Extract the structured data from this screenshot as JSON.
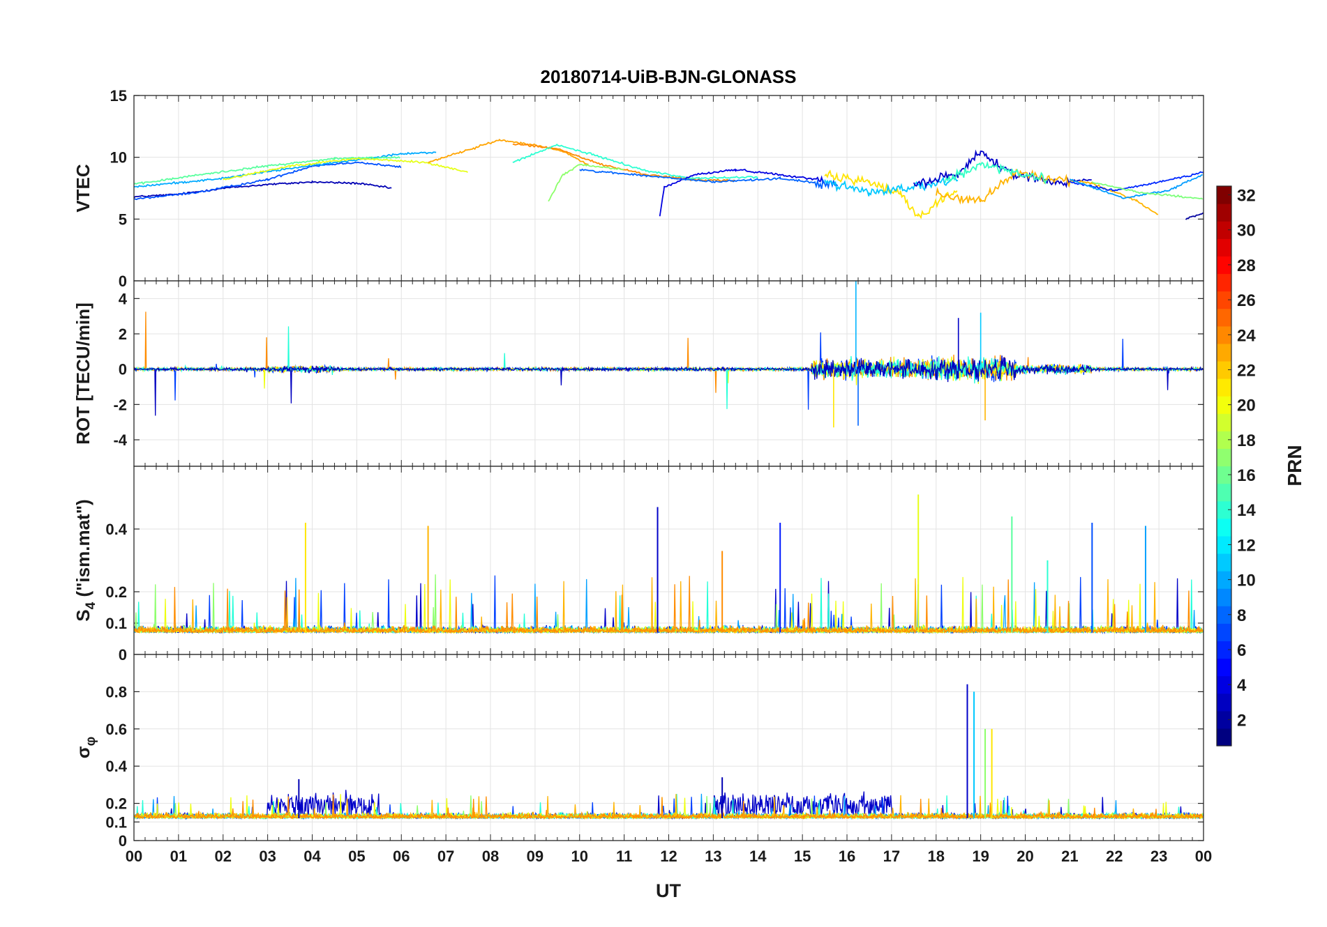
{
  "chart_data": {
    "type": "line",
    "title": "20180714-UiB-BJN-GLONASS",
    "xlabel": "UT",
    "x_ticks": [
      "00",
      "01",
      "02",
      "03",
      "04",
      "05",
      "06",
      "07",
      "08",
      "09",
      "10",
      "11",
      "12",
      "13",
      "14",
      "15",
      "16",
      "17",
      "18",
      "19",
      "20",
      "21",
      "22",
      "23",
      "00"
    ],
    "xlim": [
      0,
      24
    ],
    "grid": true,
    "panels": [
      {
        "id": "vtec",
        "ylabel": "VTEC",
        "ylim": [
          0,
          15
        ],
        "yticks": [
          "0",
          "5",
          "10",
          "15"
        ],
        "series": [
          {
            "color": "#0000b4",
            "x": [
              0,
              1,
              2,
              3,
              4,
              5,
              5.8
            ],
            "y": [
              6.8,
              7.0,
              7.5,
              7.8,
              8.0,
              7.9,
              7.5
            ]
          },
          {
            "color": "#0050ff",
            "x": [
              0,
              1.5,
              3,
              4,
              5,
              6
            ],
            "y": [
              6.6,
              7.2,
              8.2,
              9.3,
              9.6,
              9.2
            ]
          },
          {
            "color": "#00aaff",
            "x": [
              0,
              2,
              3.5,
              5,
              6,
              6.8
            ],
            "y": [
              7.6,
              8.3,
              9.1,
              9.8,
              10.3,
              10.4
            ]
          },
          {
            "color": "#58ff9e",
            "x": [
              0,
              1.5,
              3,
              4.5,
              6
            ],
            "y": [
              7.8,
              8.6,
              9.3,
              9.9,
              10.0
            ]
          },
          {
            "color": "#e6ff18",
            "x": [
              2,
              3.5,
              5,
              6.5,
              7.5
            ],
            "y": [
              8.2,
              9.3,
              9.9,
              9.6,
              8.8
            ]
          },
          {
            "color": "#ffa400",
            "x": [
              6.6,
              7.5,
              8.2,
              9,
              9.6,
              10.2
            ],
            "y": [
              9.6,
              10.6,
              11.4,
              11.0,
              10.5,
              9.4
            ]
          },
          {
            "color": "#ff8a00",
            "x": [
              8.5,
              9.5,
              10.5,
              11.5,
              12.5,
              13.5
            ],
            "y": [
              11.1,
              10.7,
              9.4,
              8.6,
              8.2,
              8.1
            ]
          },
          {
            "color": "#2cffd2",
            "x": [
              8.5,
              9.5,
              10.5,
              11.5,
              12.5,
              14
            ],
            "y": [
              9.6,
              11.0,
              10.0,
              8.9,
              8.3,
              8.4
            ]
          },
          {
            "color": "#8cff6a",
            "x": [
              9.3,
              9.6,
              10,
              11
            ],
            "y": [
              6.4,
              8.5,
              9.4,
              9.0
            ]
          },
          {
            "color": "#0000e0",
            "x": [
              11.8,
              11.9,
              12.6,
              13.5,
              14.5,
              15.5
            ],
            "y": [
              5.2,
              7.6,
              8.6,
              9.0,
              8.6,
              8.1
            ]
          },
          {
            "color": "#0064ff",
            "x": [
              10,
              11.5,
              13,
              14.5,
              15.8
            ],
            "y": [
              9.0,
              8.5,
              8.0,
              8.3,
              7.7
            ]
          },
          {
            "color": "#ffe400",
            "x": [
              15.5,
              16.5,
              17.2,
              17.6,
              18.5
            ],
            "y": [
              8.5,
              8.0,
              7.0,
              5.2,
              7.5
            ]
          },
          {
            "color": "#00c8ff",
            "x": [
              15.5,
              16.5,
              17.5,
              18.5
            ],
            "y": [
              8.0,
              7.2,
              7.6,
              8.1
            ]
          },
          {
            "color": "#0000c8",
            "x": [
              17.5,
              18.5,
              19,
              19.5,
              20.5,
              21.5
            ],
            "y": [
              7.8,
              8.7,
              10.5,
              9.0,
              8.0,
              8.2
            ]
          },
          {
            "color": "#ffb400",
            "x": [
              18,
              19,
              19.8,
              20.5,
              21.5,
              22.5,
              23.0
            ],
            "y": [
              7.0,
              6.5,
              8.8,
              8.3,
              7.9,
              6.5,
              5.3
            ]
          },
          {
            "color": "#32ffc5",
            "x": [
              18.2,
              19,
              19.7,
              20.5
            ],
            "y": [
              8.0,
              9.5,
              8.7,
              8.2
            ]
          },
          {
            "color": "#0028ff",
            "x": [
              21,
              22,
              23,
              24
            ],
            "y": [
              8.0,
              7.3,
              8.0,
              8.8
            ]
          },
          {
            "color": "#009cff",
            "x": [
              21,
              22.2,
              23.2,
              24
            ],
            "y": [
              8.2,
              6.7,
              7.3,
              8.6
            ]
          },
          {
            "color": "#7cff7a",
            "x": [
              21.5,
              22.5,
              23.5,
              24
            ],
            "y": [
              8.0,
              7.2,
              6.8,
              6.6
            ]
          },
          {
            "color": "#0000a0",
            "x": [
              23.6,
              24
            ],
            "y": [
              5.0,
              5.5
            ]
          }
        ]
      },
      {
        "id": "rot",
        "ylabel": "ROT [TECU/min]",
        "ylim": [
          -5.5,
          5
        ],
        "yticks": [
          "-4",
          "-2",
          "0",
          "2",
          "4"
        ],
        "series": [
          {
            "color": "#0040ff",
            "x": [
              0,
              24
            ],
            "y": [
              0,
              0
            ]
          },
          {
            "color": "#ff8c00",
            "x": [
              0,
              24
            ],
            "y": [
              0,
              0
            ]
          },
          {
            "color": "#eeff10",
            "x": [
              0,
              24
            ],
            "y": [
              0,
              0
            ]
          },
          {
            "color": "#22ffd8",
            "x": [
              0,
              24
            ],
            "y": [
              0,
              0
            ]
          },
          {
            "color": "#0000c0",
            "x": [
              0,
              24
            ],
            "y": [
              0,
              0
            ]
          }
        ]
      },
      {
        "id": "s4",
        "ylabel": "S4 (\"ism.mat\")",
        "ylabel_main": "S",
        "ylabel_sub": "4",
        "ylabel_rest": " (\"ism.mat\")",
        "ylim": [
          0,
          0.6
        ],
        "yticks": [
          "0",
          "0.1",
          "0.2",
          "0.4"
        ],
        "series": [
          {
            "color": "#0000c8",
            "x": [
              11.75
            ],
            "y": [
              0.47
            ]
          },
          {
            "color": "#ffe600",
            "x": [
              3.85
            ],
            "y": [
              0.42
            ]
          },
          {
            "color": "#ffb400",
            "x": [
              6.6
            ],
            "y": [
              0.41
            ]
          },
          {
            "color": "#0018ff",
            "x": [
              14.5
            ],
            "y": [
              0.42
            ]
          },
          {
            "color": "#e6ff18",
            "x": [
              17.6
            ],
            "y": [
              0.51
            ]
          },
          {
            "color": "#58ff9e",
            "x": [
              19.7
            ],
            "y": [
              0.44
            ]
          },
          {
            "color": "#0050ff",
            "x": [
              21.5
            ],
            "y": [
              0.42
            ]
          },
          {
            "color": "#00a0ff",
            "x": [
              22.7
            ],
            "y": [
              0.41
            ]
          },
          {
            "color": "#ff8c00",
            "x": [
              13.2
            ],
            "y": [
              0.33
            ]
          },
          {
            "color": "#2cffd2",
            "x": [
              20.5
            ],
            "y": [
              0.3
            ]
          }
        ]
      },
      {
        "id": "sigphi",
        "ylabel": "σφ",
        "ylabel_main": "σ",
        "ylabel_sub": "φ",
        "ylim": [
          0,
          1
        ],
        "yticks": [
          "0",
          "0.1",
          "0.2",
          "0.4",
          "0.6",
          "0.8"
        ],
        "series": [
          {
            "color": "#0000c8",
            "x": [
              18.7
            ],
            "y": [
              0.84
            ]
          },
          {
            "color": "#00c8ff",
            "x": [
              18.85
            ],
            "y": [
              0.8
            ]
          },
          {
            "color": "#8cff6a",
            "x": [
              19.1
            ],
            "y": [
              0.6
            ]
          },
          {
            "color": "#ffe600",
            "x": [
              19.25
            ],
            "y": [
              0.6
            ]
          },
          {
            "color": "#0000b4",
            "x": [
              3.7
            ],
            "y": [
              0.33
            ]
          },
          {
            "color": "#0000b4",
            "x": [
              13.2
            ],
            "y": [
              0.34
            ]
          }
        ]
      }
    ],
    "colorbar": {
      "label": "PRN",
      "range": [
        1,
        32
      ],
      "ticks": [
        "2",
        "4",
        "6",
        "8",
        "10",
        "12",
        "14",
        "16",
        "18",
        "20",
        "22",
        "24",
        "26",
        "28",
        "30",
        "32"
      ],
      "colormap": "jet"
    }
  }
}
